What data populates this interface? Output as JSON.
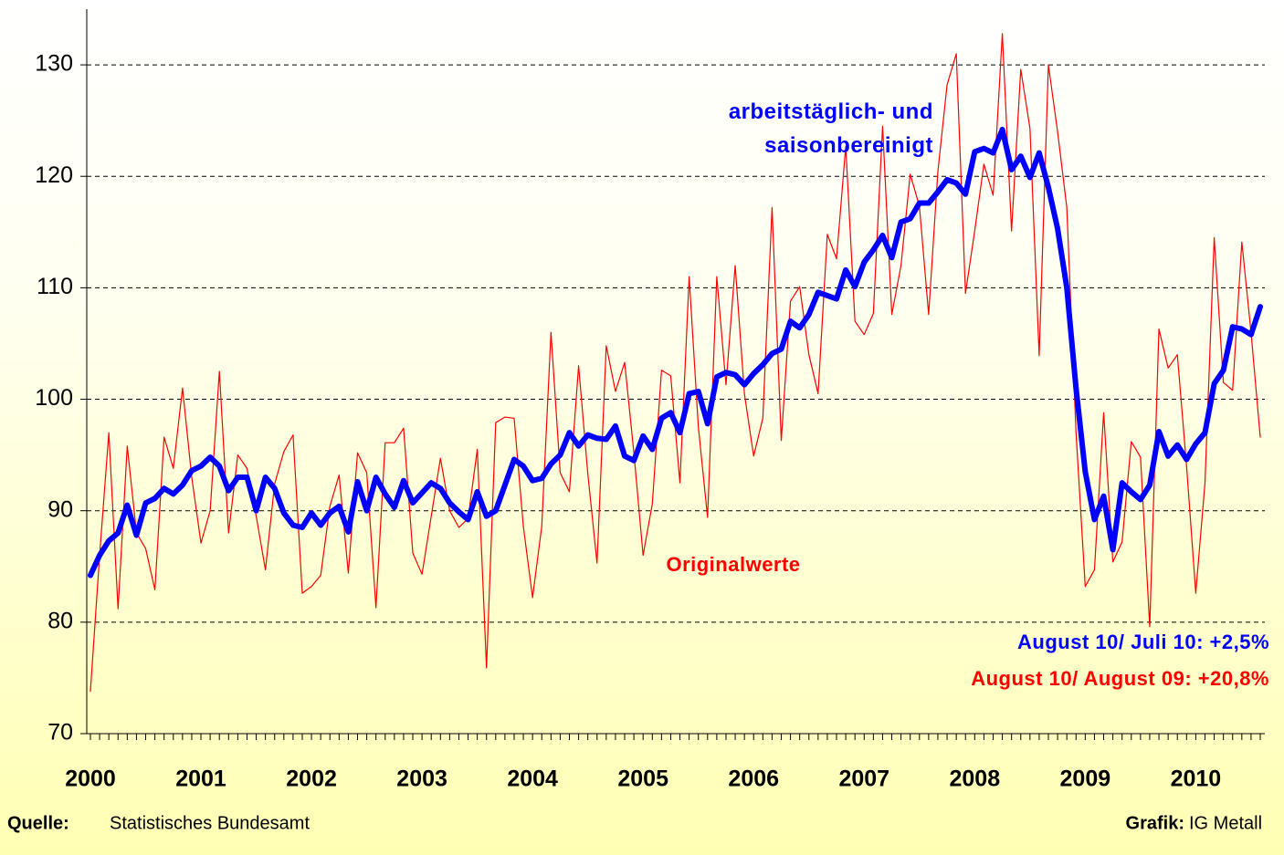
{
  "chart_data": {
    "type": "line",
    "categories": [
      "2000",
      null,
      null,
      null,
      null,
      null,
      null,
      null,
      null,
      null,
      null,
      null,
      "2001",
      null,
      null,
      null,
      null,
      null,
      null,
      null,
      null,
      null,
      null,
      null,
      "2002",
      null,
      null,
      null,
      null,
      null,
      null,
      null,
      null,
      null,
      null,
      null,
      "2003",
      null,
      null,
      null,
      null,
      null,
      null,
      null,
      null,
      null,
      null,
      null,
      "2004",
      null,
      null,
      null,
      null,
      null,
      null,
      null,
      null,
      null,
      null,
      null,
      "2005",
      null,
      null,
      null,
      null,
      null,
      null,
      null,
      null,
      null,
      null,
      null,
      "2006",
      null,
      null,
      null,
      null,
      null,
      null,
      null,
      null,
      null,
      null,
      null,
      "2007",
      null,
      null,
      null,
      null,
      null,
      null,
      null,
      null,
      null,
      null,
      null,
      "2008",
      null,
      null,
      null,
      null,
      null,
      null,
      null,
      null,
      null,
      null,
      null,
      "2009",
      null,
      null,
      null,
      null,
      null,
      null,
      null,
      null,
      null,
      null,
      null,
      "2010",
      null,
      null,
      null,
      null,
      null,
      null,
      null
    ],
    "series": [
      {
        "name": "Originalwerte",
        "color": "#ff0000",
        "width": 1.2,
        "values": [
          73.8,
          86,
          97,
          81.2,
          95.8,
          88,
          86.6,
          82.9,
          96.6,
          93.8,
          101,
          93,
          87.1,
          90,
          102.5,
          88,
          95,
          93.8,
          89.5,
          84.7,
          92.4,
          95.3,
          96.8,
          82.6,
          83.2,
          84.2,
          90.4,
          93.2,
          84.4,
          95.2,
          93.4,
          81.3,
          96.1,
          96.1,
          97.4,
          86.2,
          84.3,
          89.5,
          94.7,
          90,
          88.5,
          89.3,
          95.5,
          75.9,
          97.9,
          98.4,
          98.3,
          88.6,
          82.2,
          88.6,
          106,
          93.4,
          91.7,
          103,
          93.3,
          85.3,
          104.8,
          100.7,
          103.3,
          95.2,
          86,
          90.6,
          102.6,
          102.1,
          92.5,
          111,
          97.5,
          89.4,
          111,
          101.3,
          112,
          100.5,
          94.9,
          98.3,
          117.2,
          96.3,
          108.8,
          110.1,
          104,
          100.5,
          114.8,
          112.6,
          122.7,
          107,
          105.8,
          107.7,
          124.5,
          107.6,
          112,
          120.2,
          117.3,
          107.6,
          120.4,
          128.2,
          131,
          109.5,
          115.1,
          121.1,
          118.3,
          132.8,
          115.1,
          129.6,
          124.3,
          103.9,
          130,
          124,
          117.2,
          97,
          83.2,
          84.7,
          98.8,
          85.4,
          87.2,
          96.2,
          94.8,
          79.6,
          106.3,
          102.8,
          104,
          94,
          82.6,
          92.5,
          114.5,
          101.5,
          100.8,
          114.1,
          106,
          96.6
        ]
      },
      {
        "name": "arbeitstäglich- und saisonbereinigt",
        "color": "#0000ff",
        "width": 6,
        "values": [
          84.2,
          86,
          87.3,
          88,
          90.5,
          87.8,
          90.7,
          91.1,
          92,
          91.5,
          92.3,
          93.6,
          94,
          94.8,
          94,
          91.8,
          93,
          93,
          90,
          93,
          92,
          89.8,
          88.7,
          88.5,
          89.8,
          88.7,
          89.8,
          90.4,
          88.1,
          92.6,
          90,
          93,
          91.5,
          90.3,
          92.7,
          90.7,
          91.6,
          92.5,
          92,
          90.7,
          89.9,
          89.2,
          91.7,
          89.5,
          90,
          92.3,
          94.6,
          94,
          92.7,
          92.9,
          94.2,
          95,
          97,
          95.8,
          96.8,
          96.5,
          96.4,
          97.6,
          94.9,
          94.5,
          96.7,
          95.5,
          98.3,
          98.8,
          97,
          100.5,
          100.7,
          97.8,
          102,
          102.4,
          102.2,
          101.3,
          102.3,
          103.1,
          104.1,
          104.5,
          107,
          106.4,
          107.6,
          109.6,
          109.3,
          109,
          111.6,
          110.1,
          112.3,
          113.4,
          114.7,
          112.7,
          115.9,
          116.2,
          117.6,
          117.6,
          118.6,
          119.7,
          119.4,
          118.4,
          122.2,
          122.5,
          122.1,
          124.2,
          120.6,
          121.8,
          119.9,
          122.1,
          119,
          115.3,
          110,
          101,
          93.5,
          89.2,
          91.3,
          86.5,
          92.5,
          91.7,
          91,
          92.3,
          97.1,
          94.9,
          95.9,
          94.6,
          96,
          97,
          101.4,
          102.6,
          106.5,
          106.3,
          105.8,
          108.3
        ]
      }
    ],
    "ylim": [
      70,
      135
    ],
    "yticks": [
      70,
      80,
      90,
      100,
      110,
      120,
      130
    ],
    "grid": true,
    "annotations": [
      "August 10/ Juli 10: +2,5%",
      "August 10/ August 09: +20,8%"
    ],
    "source_label": "Quelle:",
    "source": "Statistisches Bundesamt",
    "credit_label": "Grafik:",
    "credit": "IG Metall"
  }
}
